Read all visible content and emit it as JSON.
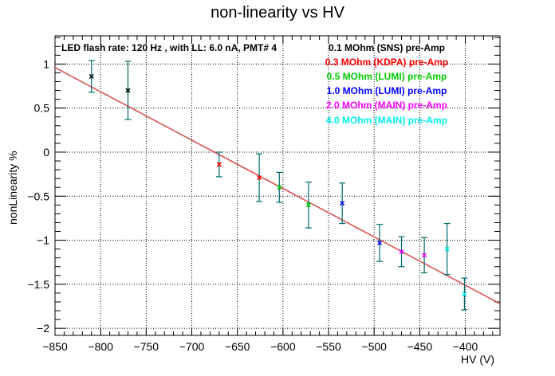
{
  "chart_data": {
    "type": "scatter",
    "title": "non-linearity vs HV",
    "xlabel": "HV (V)",
    "ylabel": "nonLinearity %",
    "xlim": [
      -850,
      -362
    ],
    "ylim": [
      -2.08,
      1.32
    ],
    "grid": true,
    "legend_position": "top-right",
    "x_ticks": [
      -850,
      -800,
      -750,
      -700,
      -650,
      -600,
      -550,
      -500,
      -450,
      -400
    ],
    "x_tick_labels": [
      "−850",
      "−800",
      "−750",
      "−700",
      "−650",
      "−600",
      "−550",
      "−500",
      "−450",
      "−400"
    ],
    "y_ticks": [
      -2,
      -1.5,
      -1,
      -0.5,
      0,
      0.5,
      1
    ],
    "y_tick_labels": [
      "−2",
      "−1.5",
      "−1",
      "−0.5",
      "0",
      "0.5",
      "1"
    ],
    "annotation": "LED flash rate: 120 Hz , with LL: 6.0 nA, PMT# 4",
    "fit_line": {
      "color": "#d9534f",
      "x": [
        -850,
        -362
      ],
      "y": [
        0.96,
        -1.72
      ]
    },
    "error_bar_color": "#006b6b",
    "series": [
      {
        "name": "0.1 MOhm (SNS) pre-Amp",
        "color": "#000000",
        "points": [
          {
            "x": -810,
            "y": 0.86,
            "err": 0.18
          },
          {
            "x": -770,
            "y": 0.7,
            "err": 0.33
          }
        ]
      },
      {
        "name": "0.3 MOhm (KDPA) pre-Amp",
        "color": "#ff0000",
        "points": [
          {
            "x": -670,
            "y": -0.14,
            "err": 0.14
          },
          {
            "x": -626,
            "y": -0.29,
            "err": 0.27
          }
        ]
      },
      {
        "name": "0.5 MOhm (LUMI) pre-Amp",
        "color": "#00cc00",
        "points": [
          {
            "x": -604,
            "y": -0.4,
            "err": 0.17
          },
          {
            "x": -572,
            "y": -0.6,
            "err": 0.26
          }
        ]
      },
      {
        "name": "1.0 MOhm (LUMI) pre-Amp",
        "color": "#0000ff",
        "points": [
          {
            "x": -535,
            "y": -0.58,
            "err": 0.23
          },
          {
            "x": -494,
            "y": -1.03,
            "err": 0.21
          }
        ]
      },
      {
        "name": "2.0 MOhm (MAIN) pre-Amp",
        "color": "#ff00ff",
        "points": [
          {
            "x": -470,
            "y": -1.13,
            "err": 0.17
          },
          {
            "x": -445,
            "y": -1.17,
            "err": 0.2
          }
        ]
      },
      {
        "name": "4.0 MOhm (MAIN) pre-Amp",
        "color": "#00eeee",
        "points": [
          {
            "x": -420,
            "y": -1.1,
            "err": 0.29
          },
          {
            "x": -401,
            "y": -1.61,
            "err": 0.18
          }
        ]
      }
    ]
  }
}
